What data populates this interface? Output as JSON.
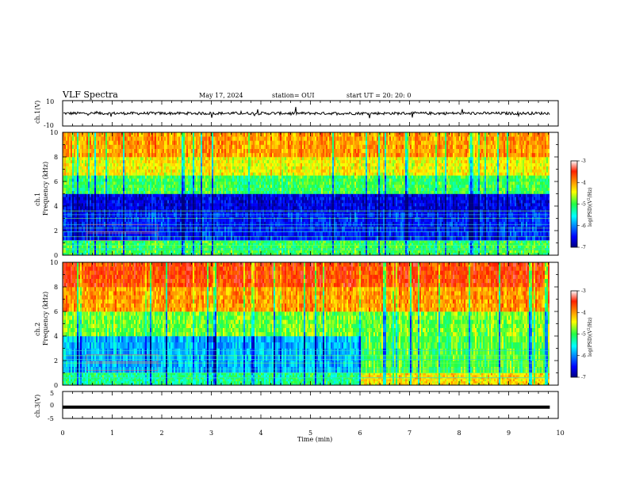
{
  "header": {
    "title": "VLF Spectra",
    "date": "May 17, 2024",
    "station": "station= OUI",
    "start": "start  UT  =   20: 20: 0"
  },
  "chart_data": [
    {
      "type": "line",
      "panel": "ch1-waveform",
      "ylabel": "ch.1(V)",
      "ylim": [
        -10,
        10
      ],
      "yticks": [
        "10",
        "-10"
      ],
      "baseline": 0,
      "trace_color": "#000000"
    },
    {
      "type": "heatmap",
      "panel": "ch1-spectrogram",
      "ylabel": "ch.1 Frequency (kHz)",
      "ylim": [
        0,
        10
      ],
      "yticks": [
        "0",
        "2",
        "4",
        "6",
        "8",
        "10"
      ],
      "colorbar": {
        "label": "log(PSD)(V^2/Hz)",
        "range": [
          -7,
          -3
        ],
        "ticks": [
          "-3",
          "-4",
          "-5",
          "-6",
          "-7"
        ]
      },
      "bands": [
        {
          "f0": 0.0,
          "f1": 1.2,
          "level": -5.0
        },
        {
          "f0": 1.2,
          "f1": 3.5,
          "level": -6.4
        },
        {
          "f0": 3.5,
          "f1": 5.0,
          "level": -6.6
        },
        {
          "f0": 5.0,
          "f1": 6.5,
          "level": -5.0
        },
        {
          "f0": 6.5,
          "f1": 8.0,
          "level": -4.4
        },
        {
          "f0": 8.0,
          "f1": 10.0,
          "level": -4.0
        }
      ]
    },
    {
      "type": "heatmap",
      "panel": "ch2-spectrogram",
      "ylabel": "ch.2 Frequency (kHz)",
      "ylim": [
        0,
        10
      ],
      "yticks": [
        "0",
        "2",
        "4",
        "6",
        "8",
        "10"
      ],
      "colorbar": {
        "label": "log(PSD)(V^2/Hz)",
        "range": [
          -7,
          -3
        ],
        "ticks": [
          "-3",
          "-4",
          "-5",
          "-6",
          "-7"
        ]
      },
      "bands": [
        {
          "f0": 0.0,
          "f1": 1.0,
          "level": -5.2
        },
        {
          "f0": 1.0,
          "f1": 4.0,
          "level": -5.8
        },
        {
          "f0": 4.0,
          "f1": 6.0,
          "level": -4.8
        },
        {
          "f0": 6.0,
          "f1": 8.0,
          "level": -4.0
        },
        {
          "f0": 8.0,
          "f1": 10.0,
          "level": -3.6
        }
      ],
      "regime_change_min": 6.0
    },
    {
      "type": "line",
      "panel": "ch3-waveform",
      "ylabel": "ch.3(V)",
      "ylim": [
        -5,
        5
      ],
      "yticks": [
        "5",
        "0",
        "-5"
      ],
      "baseline": -0.8,
      "trace_color": "#000000"
    }
  ],
  "xaxis": {
    "label": "Time  (min)",
    "xlim": [
      0,
      10
    ],
    "ticks": [
      "0",
      "1",
      "2",
      "3",
      "4",
      "5",
      "6",
      "7",
      "8",
      "9",
      "10"
    ],
    "data_end_min": 9.83
  }
}
